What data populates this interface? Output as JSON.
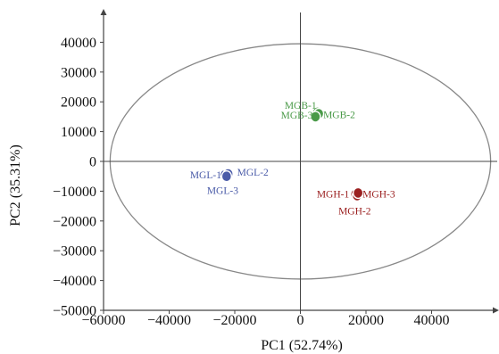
{
  "chart_data": {
    "type": "scatter",
    "title": "",
    "xlabel": "PC1 (52.74%)",
    "ylabel": "PC2 (35.31%)",
    "xlim": [
      -60000,
      60000
    ],
    "ylim": [
      -50000,
      50000
    ],
    "x_ticks": [
      -60000,
      -40000,
      -20000,
      0,
      20000,
      40000
    ],
    "x_tick_labels": [
      "−60000",
      "−40000",
      "−20000",
      "0",
      "20000",
      "40000"
    ],
    "y_ticks": [
      40000,
      30000,
      20000,
      10000,
      0,
      -10000,
      -20000,
      -30000,
      -40000,
      -50000
    ],
    "y_tick_labels": [
      "40000",
      "30000",
      "20000",
      "10000",
      "0",
      "−10000",
      "−20000",
      "−30000",
      "−40000",
      "−50000"
    ],
    "grid": false,
    "confidence_ellipse": {
      "center_x": 0,
      "center_y": 0,
      "semi_axis_x": 58000,
      "semi_axis_y": 39500,
      "color": "#888888"
    },
    "series": [
      {
        "color": "#4a5ba8",
        "points": [
          {
            "label": "MGL-1",
            "x": -23000,
            "y": -4500
          },
          {
            "label": "MGL-2",
            "x": -22000,
            "y": -4200
          },
          {
            "label": "MGL-3",
            "x": -22500,
            "y": -5000
          }
        ]
      },
      {
        "color": "#4a9a48",
        "points": [
          {
            "label": "MGB-1",
            "x": 5200,
            "y": 16500
          },
          {
            "label": "MGB-2",
            "x": 5600,
            "y": 16000
          },
          {
            "label": "MGB-3",
            "x": 4600,
            "y": 15000
          }
        ]
      },
      {
        "color": "#9b2020",
        "points": [
          {
            "label": "MGH-1",
            "x": 16800,
            "y": -11000
          },
          {
            "label": "MGH-2",
            "x": 17300,
            "y": -11500
          },
          {
            "label": "MGH-3",
            "x": 17600,
            "y": -10600
          }
        ]
      }
    ]
  }
}
